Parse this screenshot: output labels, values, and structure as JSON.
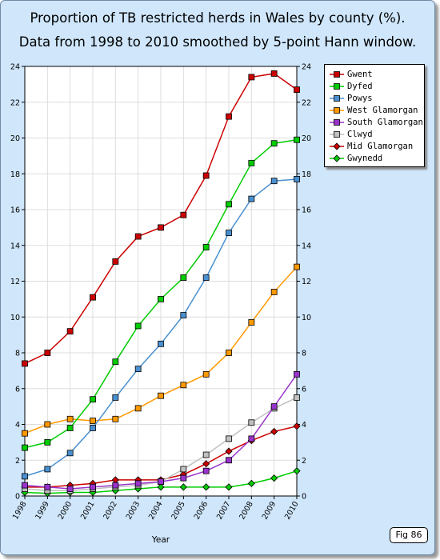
{
  "chart_data": {
    "type": "line",
    "title": "Proportion of TB restricted herds in Wales by county (%).",
    "subtitle": "Data from 1998 to 2010 smoothed by 5-point Hann window.",
    "xlabel": "Year",
    "ylabel": "",
    "x": [
      1998,
      1999,
      2000,
      2001,
      2002,
      2003,
      2004,
      2005,
      2006,
      2007,
      2008,
      2009,
      2010
    ],
    "x_tick_labels": [
      "1998",
      "1999",
      "2000",
      "2001",
      "2002",
      "2003",
      "2004",
      "2005",
      "2006",
      "2007",
      "2008",
      "2009",
      "2010"
    ],
    "ylim": [
      0,
      24
    ],
    "y_ticks": [
      0,
      2,
      4,
      6,
      8,
      10,
      12,
      14,
      16,
      18,
      20,
      22,
      24
    ],
    "y_tick_labels": [
      "0",
      "2",
      "4",
      "6",
      "8",
      "10",
      "12",
      "14",
      "16",
      "18",
      "20",
      "22",
      "24"
    ],
    "grid": true,
    "legend_position": "top-right",
    "series": [
      {
        "name": "Gwent",
        "color": "#cc0000",
        "marker": "square",
        "values": [
          7.4,
          8.0,
          9.2,
          11.1,
          13.1,
          14.5,
          15.0,
          15.7,
          17.9,
          21.2,
          23.4,
          23.6,
          22.7
        ]
      },
      {
        "name": "Dyfed",
        "color": "#00cc00",
        "marker": "square",
        "values": [
          2.7,
          3.0,
          3.8,
          5.4,
          7.5,
          9.5,
          11.0,
          12.2,
          13.9,
          16.3,
          18.6,
          19.7,
          19.9
        ]
      },
      {
        "name": "Powys",
        "color": "#4a90d0",
        "marker": "square",
        "values": [
          1.1,
          1.5,
          2.4,
          3.8,
          5.5,
          7.1,
          8.5,
          10.1,
          12.2,
          14.7,
          16.6,
          17.6,
          17.7
        ]
      },
      {
        "name": "West Glamorgan",
        "color": "#ff9900",
        "marker": "square",
        "values": [
          3.5,
          4.0,
          4.3,
          4.2,
          4.3,
          4.9,
          5.6,
          6.2,
          6.8,
          8.0,
          9.7,
          11.4,
          12.8
        ]
      },
      {
        "name": "South Glamorgan",
        "color": "#9933cc",
        "marker": "square",
        "values": [
          0.6,
          0.5,
          0.4,
          0.5,
          0.6,
          0.7,
          0.8,
          1.0,
          1.4,
          2.0,
          3.2,
          5.0,
          6.8
        ]
      },
      {
        "name": "Clwyd",
        "color": "#c0c0c0",
        "marker": "square",
        "values": [
          0.4,
          0.3,
          0.3,
          0.4,
          0.5,
          0.6,
          0.8,
          1.5,
          2.3,
          3.2,
          4.1,
          4.9,
          5.5
        ]
      },
      {
        "name": "Mid Glamorgan",
        "color": "#cc0000",
        "marker": "diamond",
        "values": [
          0.5,
          0.5,
          0.6,
          0.7,
          0.9,
          0.9,
          0.9,
          1.2,
          1.8,
          2.5,
          3.1,
          3.6,
          3.9
        ]
      },
      {
        "name": "Gwynedd",
        "color": "#00cc00",
        "marker": "diamond",
        "values": [
          0.2,
          0.15,
          0.2,
          0.2,
          0.3,
          0.4,
          0.5,
          0.5,
          0.5,
          0.5,
          0.7,
          1.0,
          1.4
        ]
      }
    ]
  },
  "figure_label": "Fig 86"
}
